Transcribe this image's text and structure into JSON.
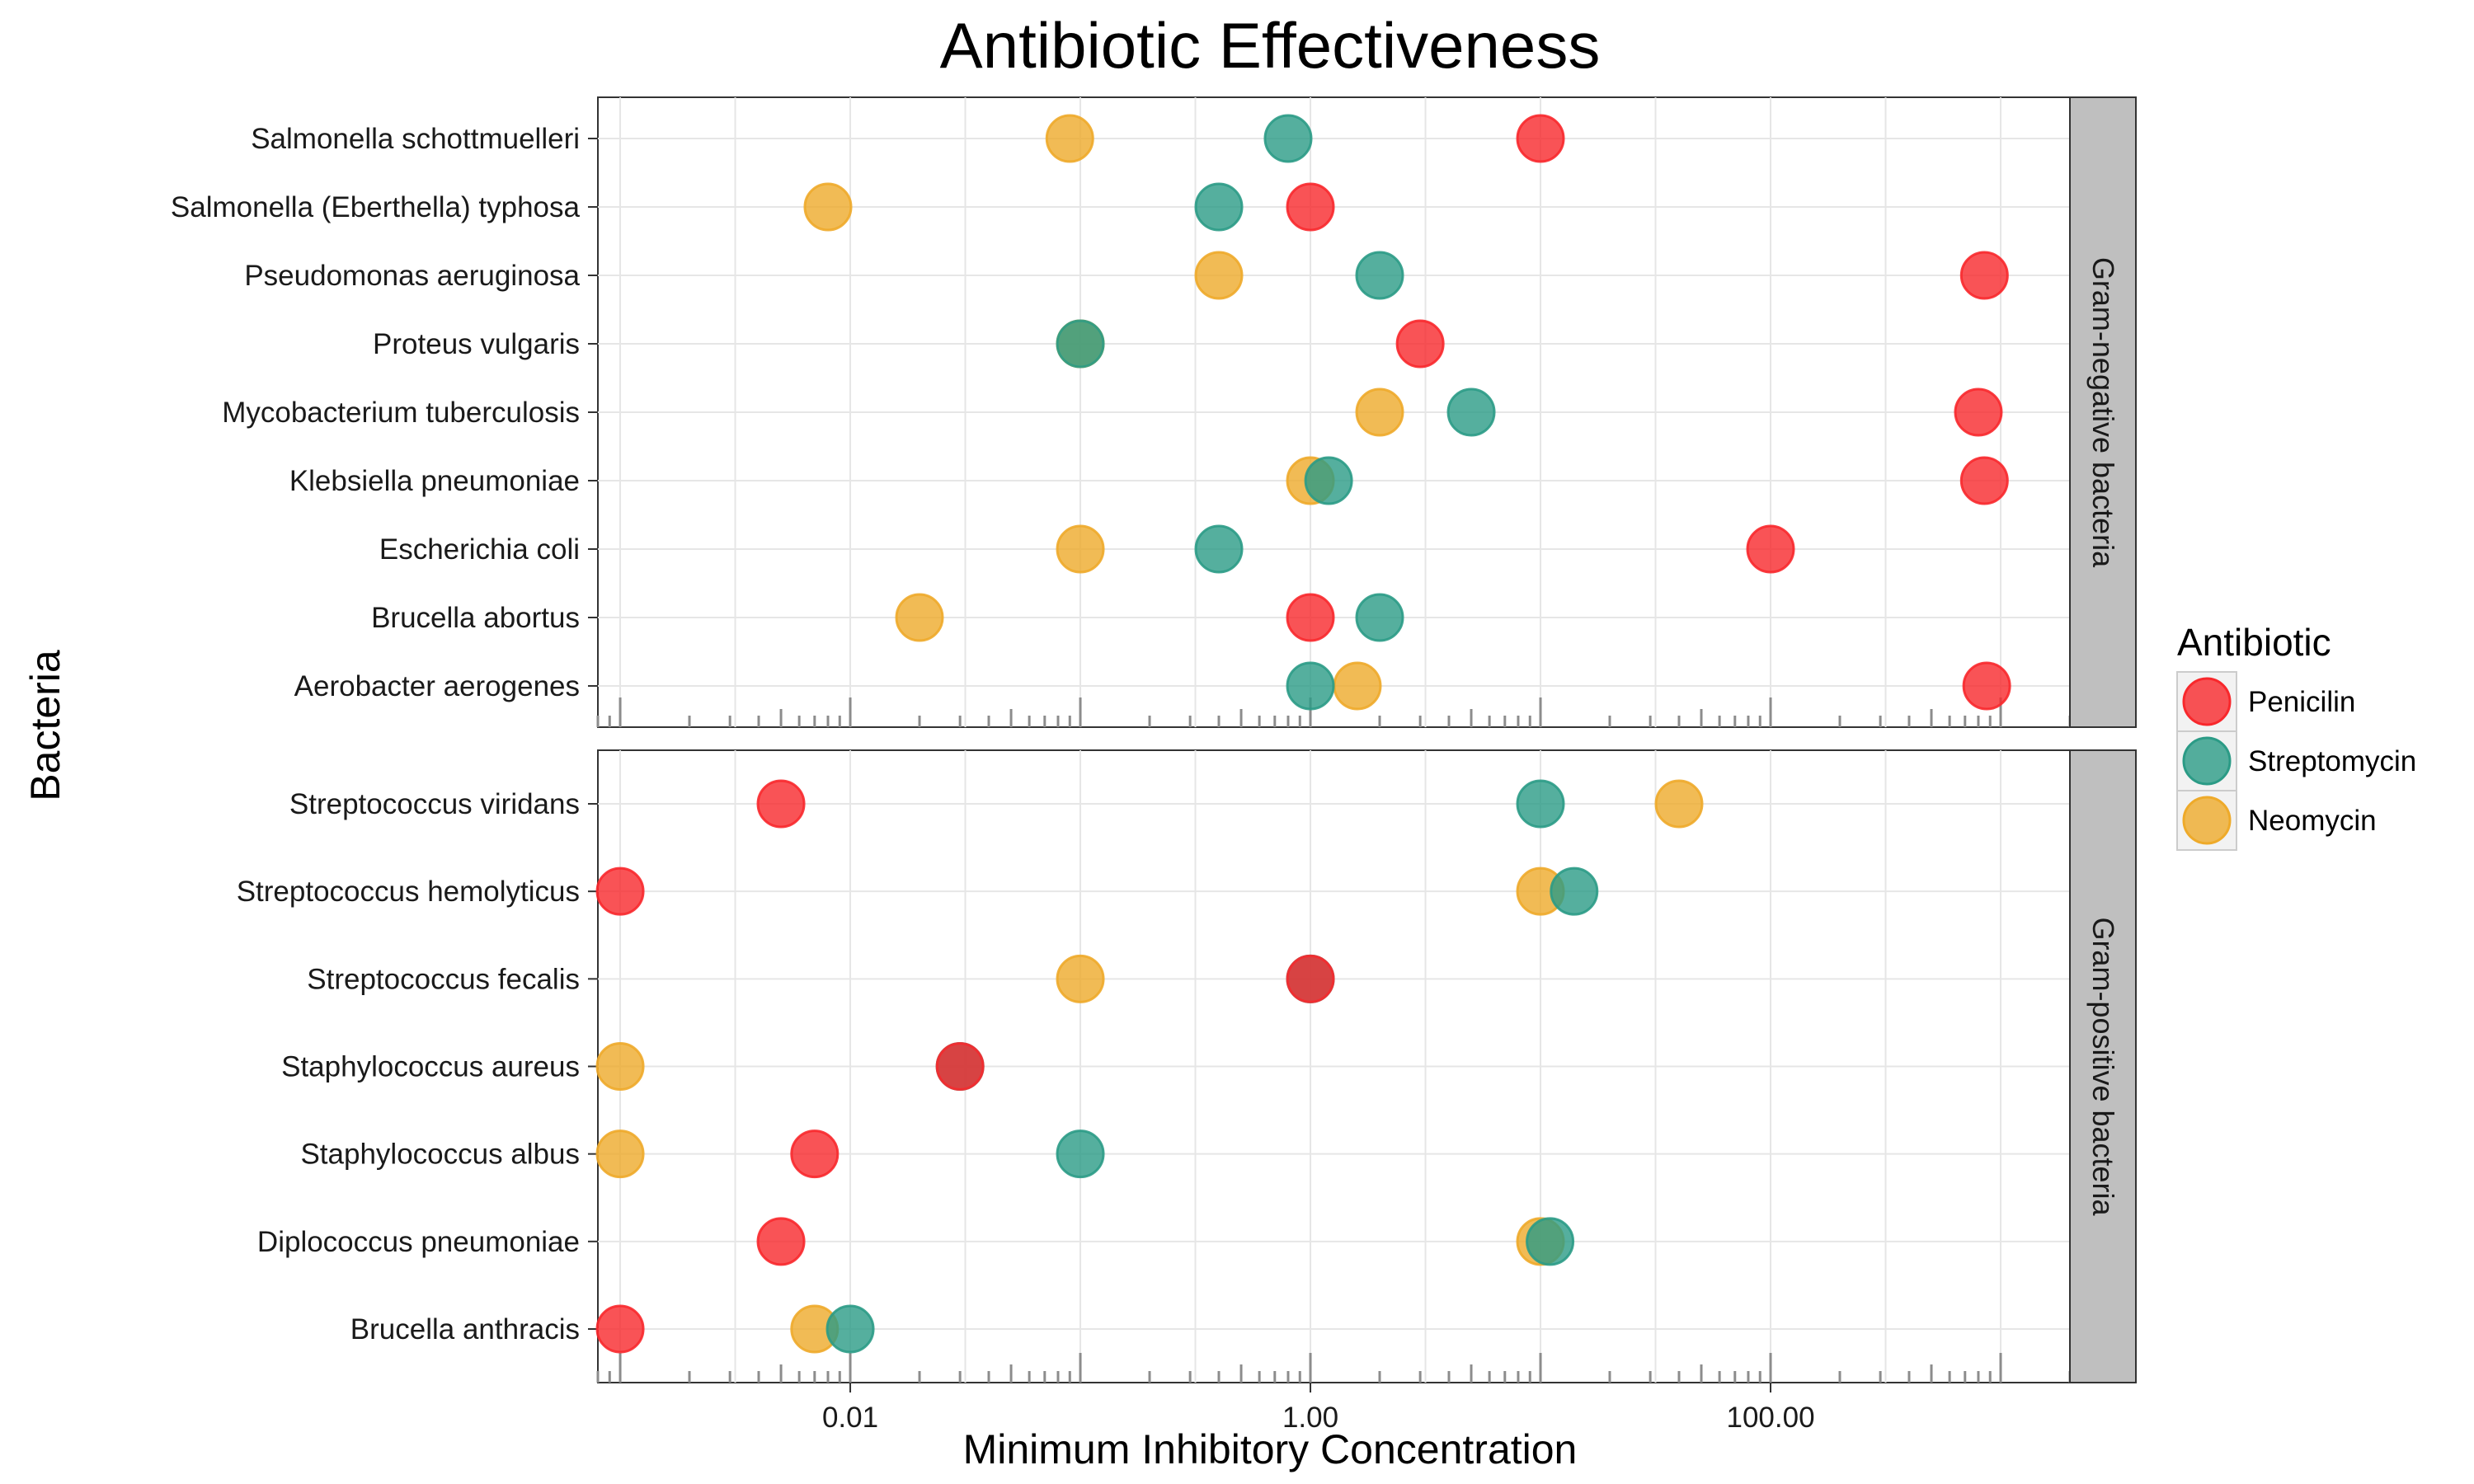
{
  "chart_data": {
    "type": "scatter",
    "title": "Antibiotic Effectiveness",
    "xlabel": "Minimum Inhibitory Concentration",
    "ylabel": "Bacteria",
    "x_scale": "log10",
    "xlim": [
      0.0008,
      2000
    ],
    "x_ticks": [
      0.01,
      1,
      100
    ],
    "x_tick_labels": [
      "0.01",
      "1.00",
      "100.00"
    ],
    "legend": {
      "title": "Antibiotic",
      "position": "right",
      "entries": [
        {
          "name": "Penicilin",
          "color": "#f8282c"
        },
        {
          "name": "Streptomycin",
          "color": "#2b9b86"
        },
        {
          "name": "Neomycin",
          "color": "#eeaa2a"
        }
      ]
    },
    "point_alpha": 0.8,
    "grid": true,
    "panels": [
      {
        "facet": "Gram-negative bacteria",
        "bacteria": [
          {
            "name": "Salmonella schottmuelleri",
            "Penicilin": 10,
            "Streptomycin": 0.8,
            "Neomycin": 0.09
          },
          {
            "name": "Salmonella (Eberthella) typhosa",
            "Penicilin": 1,
            "Streptomycin": 0.4,
            "Neomycin": 0.008
          },
          {
            "name": "Pseudomonas aeruginosa",
            "Penicilin": 850,
            "Streptomycin": 2,
            "Neomycin": 0.4
          },
          {
            "name": "Proteus vulgaris",
            "Penicilin": 3,
            "Streptomycin": 0.1,
            "Neomycin": 0.1
          },
          {
            "name": "Mycobacterium tuberculosis",
            "Penicilin": 800,
            "Streptomycin": 5,
            "Neomycin": 2
          },
          {
            "name": "Klebsiella pneumoniae",
            "Penicilin": 850,
            "Streptomycin": 1.2,
            "Neomycin": 1
          },
          {
            "name": "Escherichia coli",
            "Penicilin": 100,
            "Streptomycin": 0.4,
            "Neomycin": 0.1
          },
          {
            "name": "Brucella abortus",
            "Penicilin": 1,
            "Streptomycin": 2,
            "Neomycin": 0.02
          },
          {
            "name": "Aerobacter aerogenes",
            "Penicilin": 870,
            "Streptomycin": 1,
            "Neomycin": 1.6
          }
        ]
      },
      {
        "facet": "Gram-positive bacteria",
        "bacteria": [
          {
            "name": "Streptococcus viridans",
            "Penicilin": 0.005,
            "Streptomycin": 10,
            "Neomycin": 40
          },
          {
            "name": "Streptococcus hemolyticus",
            "Penicilin": 0.001,
            "Streptomycin": 14,
            "Neomycin": 10
          },
          {
            "name": "Streptococcus fecalis",
            "Penicilin": 1,
            "Streptomycin": 1,
            "Neomycin": 0.1
          },
          {
            "name": "Staphylococcus aureus",
            "Penicilin": 0.03,
            "Streptomycin": 0.03,
            "Neomycin": 0.001
          },
          {
            "name": "Staphylococcus albus",
            "Penicilin": 0.007,
            "Streptomycin": 0.1,
            "Neomycin": 0.001
          },
          {
            "name": "Diplococcus pneumoniae",
            "Penicilin": 0.005,
            "Streptomycin": 11,
            "Neomycin": 10
          },
          {
            "name": "Brucella anthracis",
            "Penicilin": 0.001,
            "Streptomycin": 0.01,
            "Neomycin": 0.007
          }
        ]
      }
    ]
  }
}
